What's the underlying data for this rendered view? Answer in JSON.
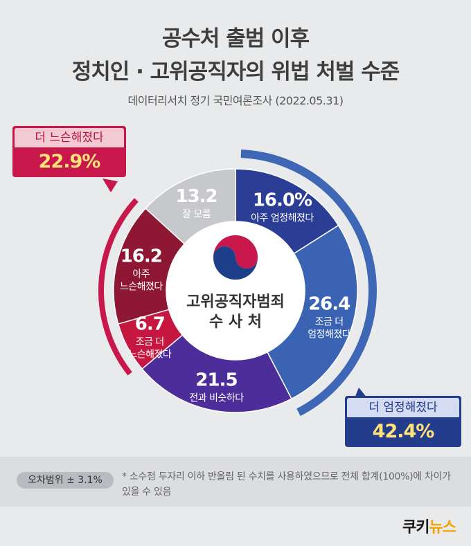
{
  "header": {
    "title_line1": "공수처 출범 이후",
    "title_line2": "정치인 · 고위공직자의 위법 처벌 수준",
    "subtitle": "데이터리서치 정기 국민여론조사 (2022.05.31)"
  },
  "center": {
    "org_name": "고위공직자범죄",
    "org_name2": "수 사 처"
  },
  "callouts": {
    "looser_label": "더 느슨해졌다",
    "looser_value": "22.9%",
    "stricter_label": "더 엄정해졌다",
    "stricter_value": "42.4%"
  },
  "footer": {
    "error_range": "오차범위 ± 3.1%",
    "footnote": "* 소수점 두자리 이하 반올림 된 수치를 사용하였으므로 전체 합계(100%)에 차이가 있을 수 있음",
    "logo_part1": "쿠키",
    "logo_part2": "뉴스"
  },
  "colors": {
    "very_strict": "#2b3d95",
    "somewhat_strict": "#3a63b3",
    "same": "#4c2d99",
    "somewhat_loose": "#c5173f",
    "very_loose": "#8e1733",
    "unknown": "#c7c8cc",
    "strict_arc": "#3e67b6",
    "loose_arc": "#c8174a"
  },
  "chart_data": {
    "type": "pie",
    "title": "공수처 출범 이후 정치인 · 고위공직자의 위법 처벌 수준",
    "slices": [
      {
        "label": "아주 엄정해졌다",
        "value": 16.0,
        "display": "16.0%",
        "color": "#2b3d95"
      },
      {
        "label": "조금 더 엄정해졌다",
        "value": 26.4,
        "display": "26.4",
        "color": "#3a63b3"
      },
      {
        "label": "전과 비슷하다",
        "value": 21.5,
        "display": "21.5",
        "color": "#4c2d99"
      },
      {
        "label": "조금 더 느슨해졌다",
        "value": 6.7,
        "display": "6.7",
        "color": "#c5173f"
      },
      {
        "label": "아주 느슨해졌다",
        "value": 16.2,
        "display": "16.2",
        "color": "#8e1733"
      },
      {
        "label": "잘 모름",
        "value": 13.2,
        "display": "13.2",
        "color": "#c7c8cc"
      }
    ],
    "groups": [
      {
        "label": "더 엄정해졌다",
        "value": 42.4
      },
      {
        "label": "더 느슨해졌다",
        "value": 22.9
      }
    ]
  }
}
